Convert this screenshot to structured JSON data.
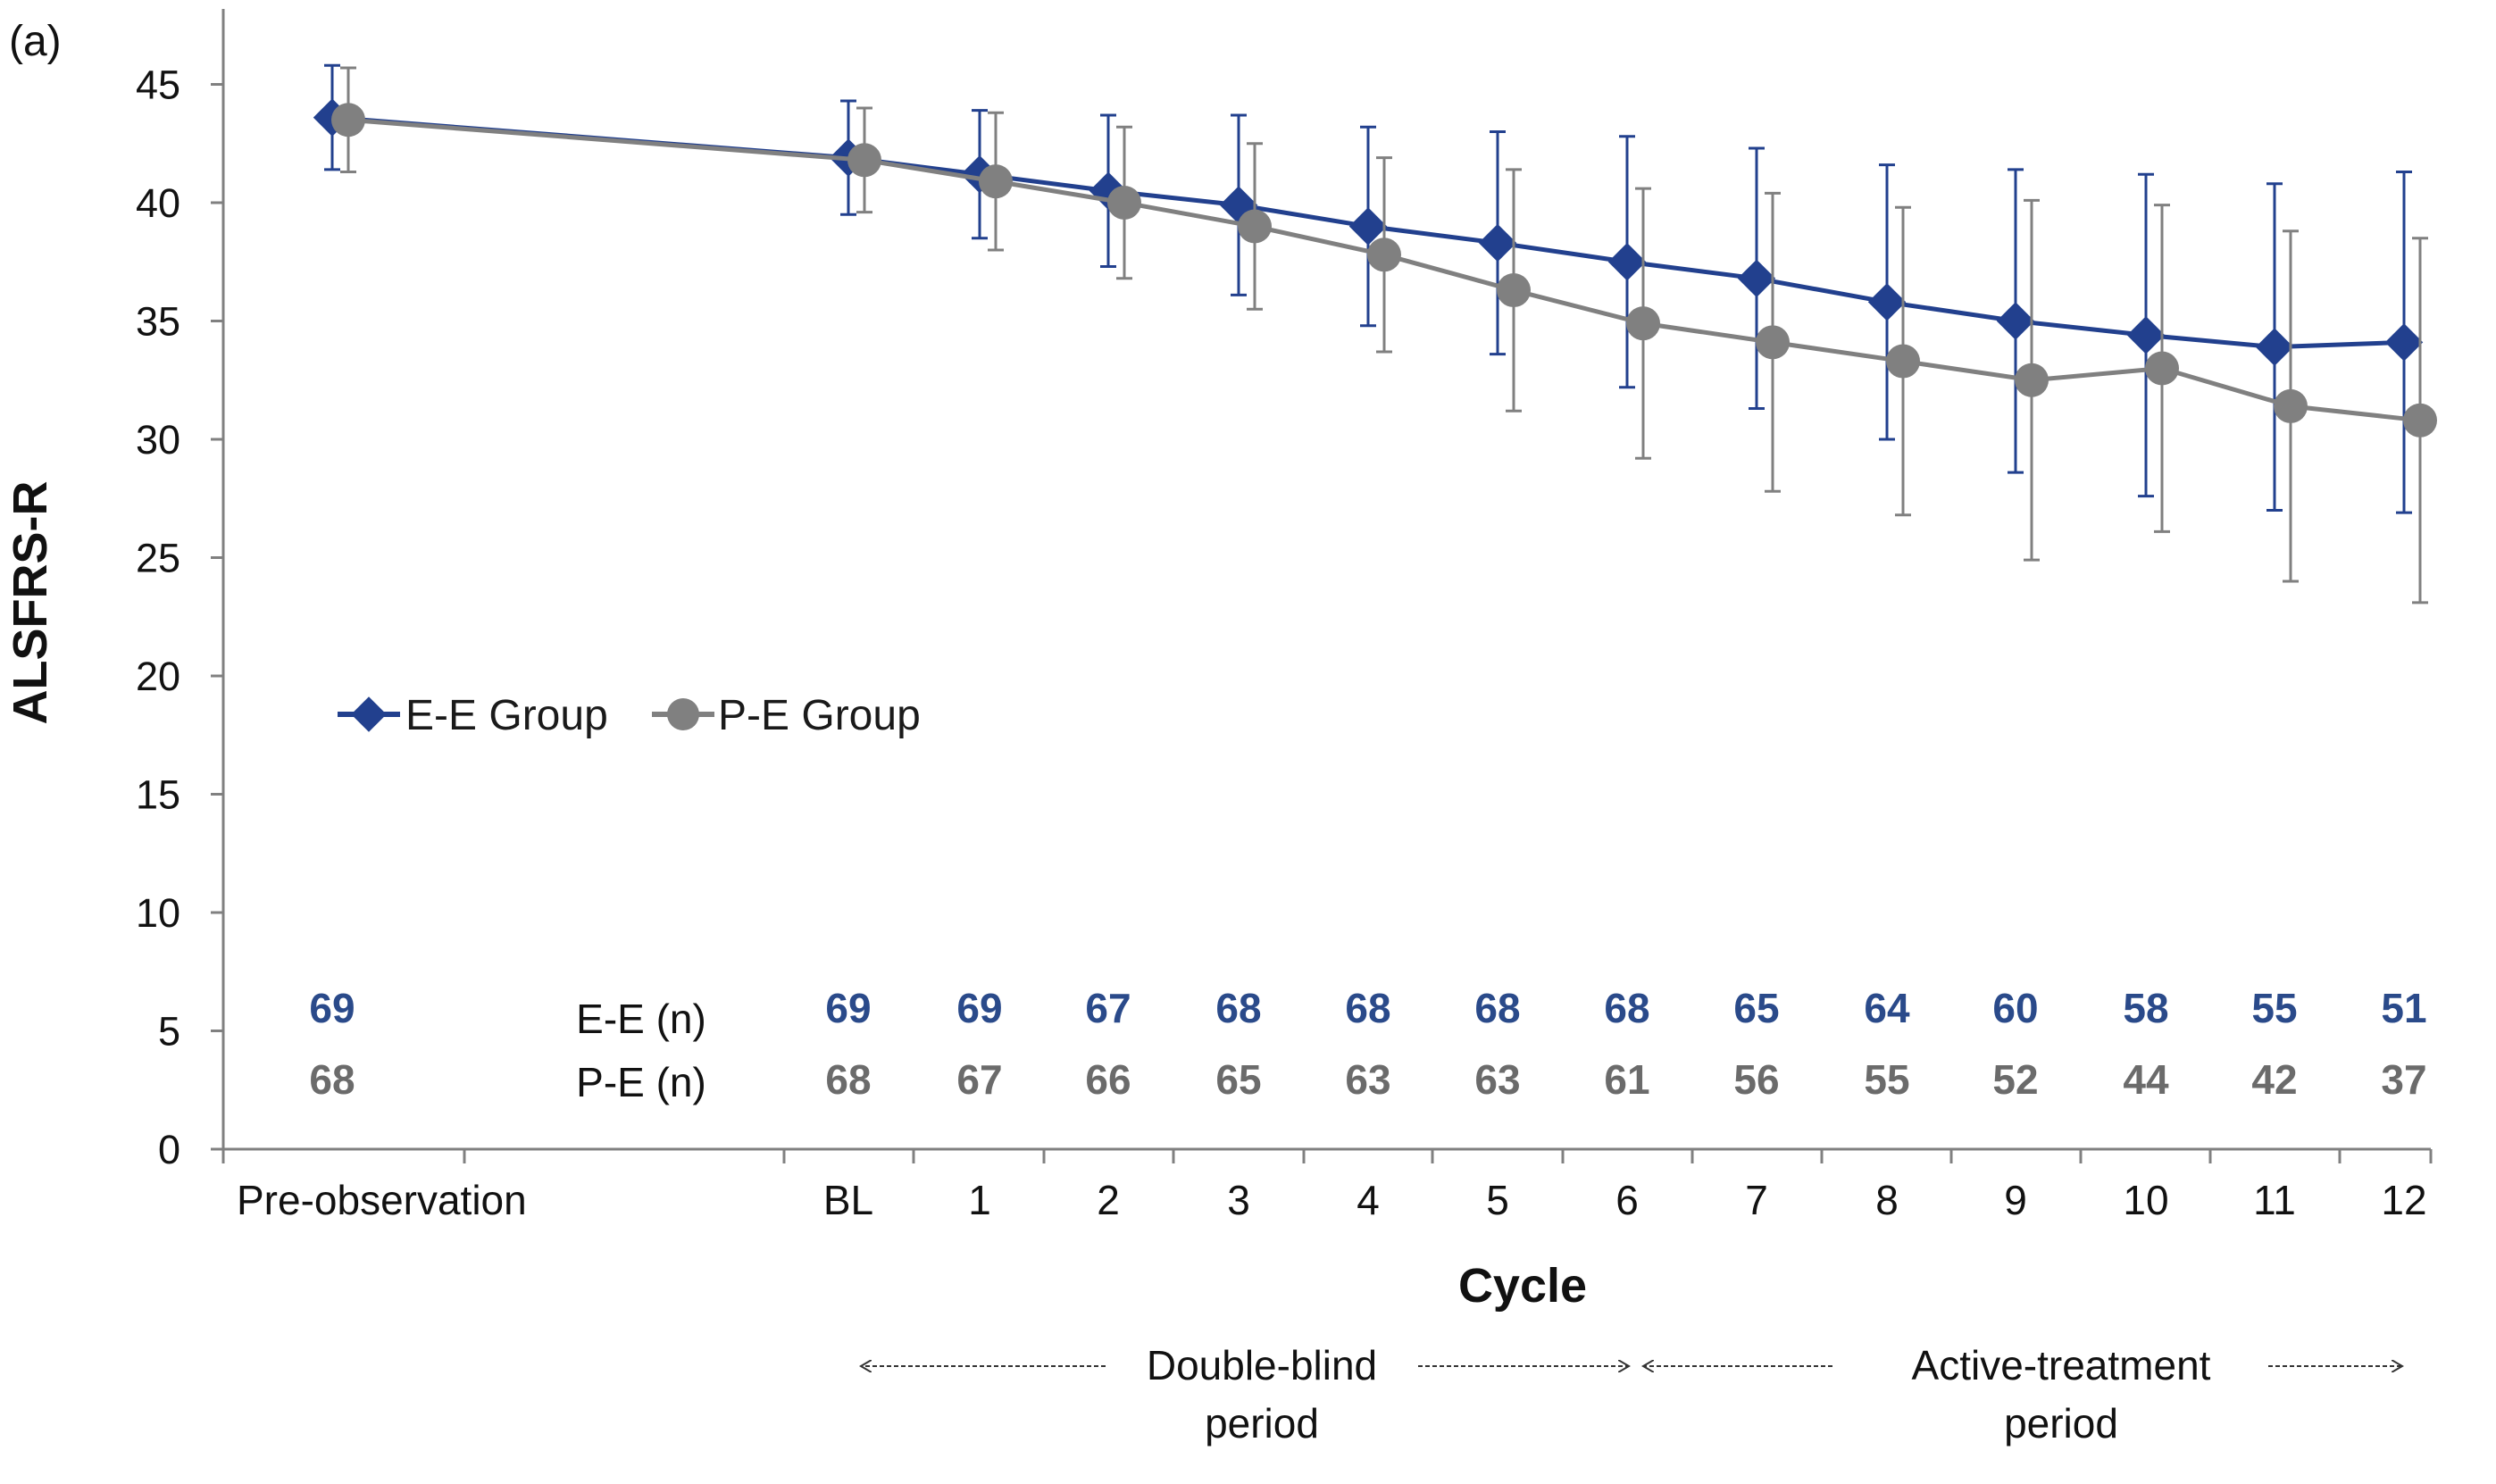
{
  "colors": {
    "ee": "#22408e",
    "pe": "#808080",
    "axis": "#808080",
    "arrow": "#333333"
  },
  "panel_label": "(a)",
  "legend": {
    "ee": "E-E Group",
    "pe": "P-E Group"
  },
  "n_labels": {
    "ee": "E-E (n)",
    "pe": "P-E (n)"
  },
  "periods": [
    {
      "line1": "Double-blind",
      "line2": "period"
    },
    {
      "line1": "Active-treatment",
      "line2": "period"
    }
  ],
  "chart_data": {
    "type": "line",
    "title": "",
    "xlabel": "Cycle",
    "ylabel": "ALSFRS-R",
    "ylim": [
      0,
      45
    ],
    "yticks": [
      0,
      5,
      10,
      15,
      20,
      25,
      30,
      35,
      40,
      45
    ],
    "categories": [
      "Pre-observation",
      "BL",
      "1",
      "2",
      "3",
      "4",
      "5",
      "6",
      "7",
      "8",
      "9",
      "10",
      "11",
      "12"
    ],
    "series": [
      {
        "name": "E-E Group",
        "values": [
          43.6,
          41.9,
          41.2,
          40.5,
          39.9,
          39.0,
          38.3,
          37.5,
          36.8,
          35.8,
          35.0,
          34.4,
          33.9,
          34.1
        ],
        "error": [
          2.2,
          2.4,
          2.7,
          3.2,
          3.8,
          4.2,
          4.7,
          5.3,
          5.5,
          5.8,
          6.4,
          6.8,
          6.9,
          7.2
        ],
        "n": [
          "69",
          "69",
          "69",
          "67",
          "68",
          "68",
          "68",
          "68",
          "65",
          "64",
          "60",
          "58",
          "55",
          "51"
        ]
      },
      {
        "name": "P-E Group",
        "values": [
          43.5,
          41.8,
          40.9,
          40.0,
          39.0,
          37.8,
          36.3,
          34.9,
          34.1,
          33.3,
          32.5,
          33.0,
          31.4,
          30.8
        ],
        "error": [
          2.2,
          2.2,
          2.9,
          3.2,
          3.5,
          4.1,
          5.1,
          5.7,
          6.3,
          6.5,
          7.6,
          6.9,
          7.4,
          7.7
        ],
        "n": [
          "68",
          "68",
          "67",
          "66",
          "65",
          "63",
          "63",
          "61",
          "56",
          "55",
          "52",
          "44",
          "42",
          "37"
        ]
      }
    ]
  }
}
